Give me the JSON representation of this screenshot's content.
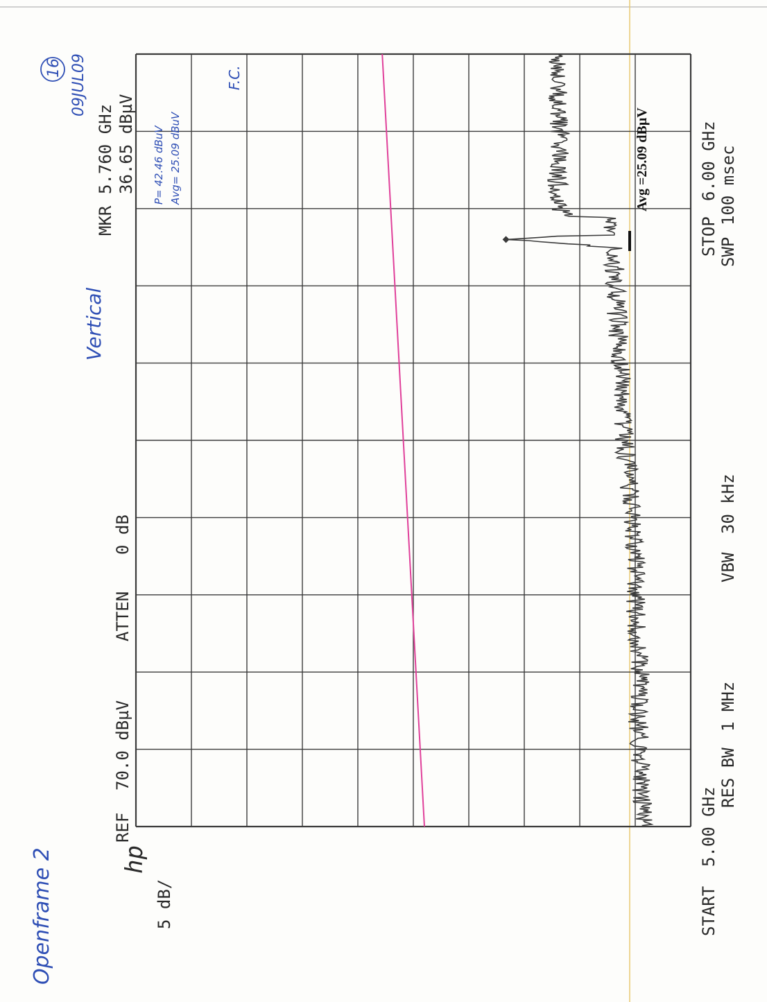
{
  "instrument": {
    "logo": "hp",
    "ref_label": "REF",
    "ref_level": "70.0 dBµV",
    "atten_label": "ATTEN",
    "atten_value": "0 dB",
    "scale": "5 dB/",
    "marker_label": "MKR",
    "marker_freq": "5.760 GHz",
    "marker_level": "36.65 dBµV",
    "start_label": "START",
    "start_freq": "5.00 GHz",
    "stop_label": "STOP",
    "stop_freq": "6.00 GHz",
    "rbw_label": "RES BW",
    "rbw_value": "1 MHz",
    "vbw_label": "VBW",
    "vbw_value": "30 kHz",
    "sweep_label": "SWP",
    "sweep_value": "100 msec"
  },
  "annotations": {
    "device": "Openframe 2",
    "polarization": "Vertical",
    "page_number": "16",
    "date": "09JUL09",
    "peak_note": "P= 42.46 dBuV",
    "avg_note": "Avg= 25.09 dBuV",
    "initials": "F.C.",
    "avg_stamp": "Avg =25.09 dBµV"
  },
  "colors": {
    "grid": "#3a3a3a",
    "trace": "#3a3a3a",
    "limit_line": "#e0409a",
    "ink": "#2f4fb5",
    "stamp_line": "#d8b040"
  },
  "chart_data": {
    "type": "line",
    "x_unit": "GHz",
    "y_unit": "dBµV",
    "xlim": [
      5.0,
      6.0
    ],
    "ylim": [
      20,
      70
    ],
    "grid": true,
    "series": [
      {
        "role": "measured trace",
        "x": [
          5.0,
          5.05,
          5.1,
          5.15,
          5.2,
          5.25,
          5.3,
          5.35,
          5.4,
          5.45,
          5.5,
          5.55,
          5.6,
          5.65,
          5.7,
          5.75,
          5.76,
          5.77,
          5.8,
          5.85,
          5.9,
          5.95,
          6.0
        ],
        "y": [
          24.2,
          24.4,
          24.6,
          24.8,
          24.6,
          24.8,
          25.0,
          25.0,
          25.2,
          25.6,
          26.0,
          26.2,
          26.4,
          26.6,
          26.8,
          27.0,
          36.6,
          27.0,
          32.0,
          32.0,
          31.8,
          32.0,
          32.0
        ]
      },
      {
        "role": "limit line",
        "x": [
          5.0,
          6.0
        ],
        "y": [
          44.0,
          47.8
        ]
      }
    ],
    "marker": {
      "x": 5.76,
      "y": 36.65
    },
    "avg_reference": {
      "x": 5.76,
      "y": 25.09
    }
  }
}
